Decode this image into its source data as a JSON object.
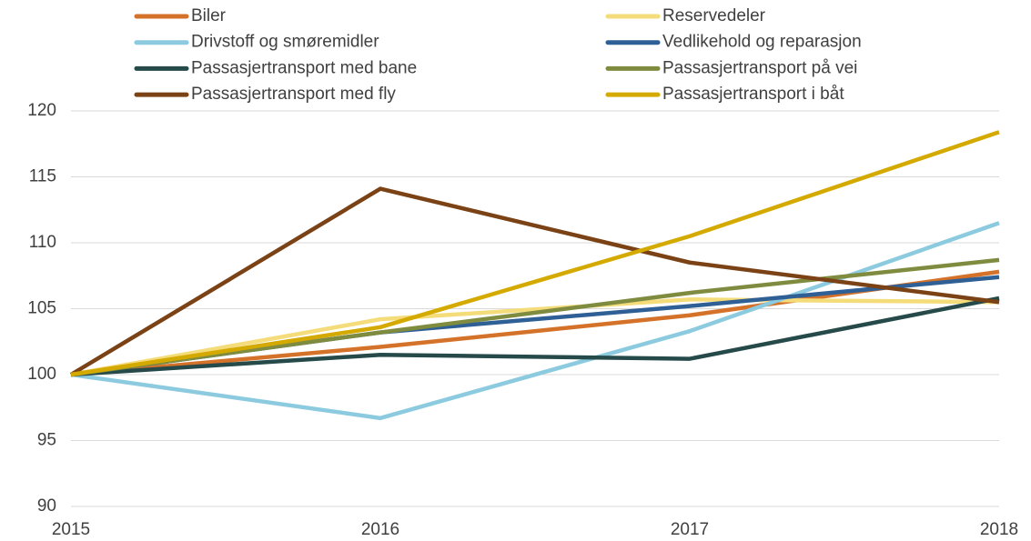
{
  "chart_data": {
    "type": "line",
    "x": [
      2015,
      2016,
      2017,
      2018
    ],
    "xlim": [
      2015,
      2018
    ],
    "xticks": [
      2015,
      2016,
      2017,
      2018
    ],
    "ylim": [
      90,
      120
    ],
    "yticks": [
      90,
      95,
      100,
      105,
      110,
      115,
      120
    ],
    "grid": true,
    "legend": "top",
    "series": [
      {
        "name": "Biler",
        "color": "#d4722a",
        "values": [
          100,
          102.1,
          104.5,
          107.8
        ]
      },
      {
        "name": "Reservedeler",
        "color": "#f5dc7a",
        "values": [
          100,
          104.2,
          105.7,
          105.5
        ]
      },
      {
        "name": "Drivstoff og smøremidler",
        "color": "#8ccbdf",
        "values": [
          100,
          96.7,
          103.3,
          111.5
        ]
      },
      {
        "name": "Vedlikehold og reparasjon",
        "color": "#2e5f95",
        "values": [
          100,
          103.2,
          105.2,
          107.4
        ]
      },
      {
        "name": "Passasjertransport med bane",
        "color": "#264a4a",
        "values": [
          100,
          101.5,
          101.2,
          105.8
        ]
      },
      {
        "name": "Passasjertransport på vei",
        "color": "#7f8c3f",
        "values": [
          100,
          103.2,
          106.2,
          108.7
        ]
      },
      {
        "name": "Passasjertransport med fly",
        "color": "#7a4215",
        "values": [
          100,
          114.1,
          108.5,
          105.5
        ]
      },
      {
        "name": "Passasjertransport i båt",
        "color": "#d4aa00",
        "values": [
          100,
          103.6,
          110.5,
          118.4
        ]
      }
    ]
  }
}
